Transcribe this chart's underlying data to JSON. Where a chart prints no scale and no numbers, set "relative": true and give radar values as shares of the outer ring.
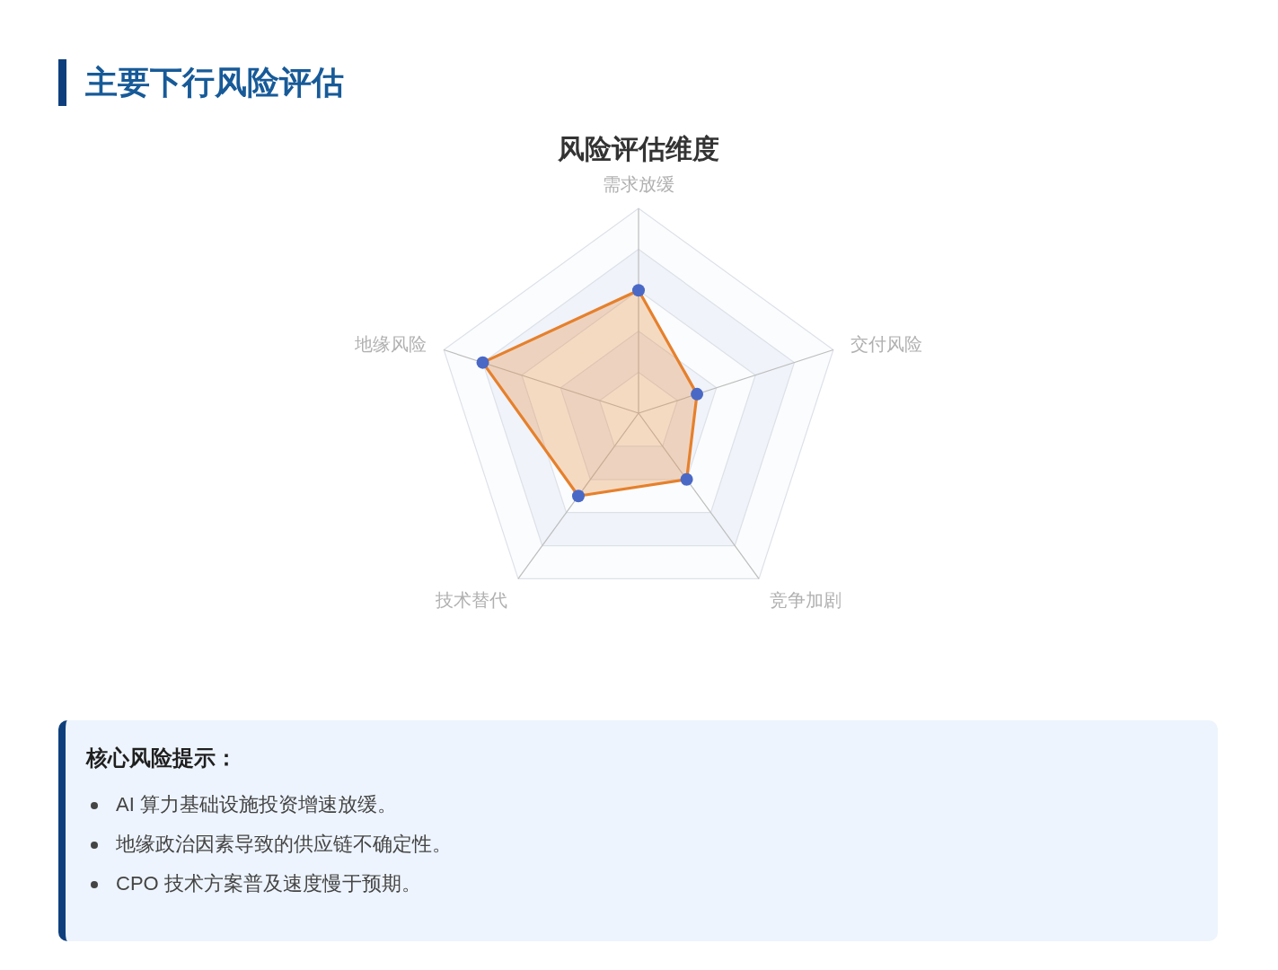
{
  "chart_data": {
    "type": "radar",
    "title": "主要下行风险评估",
    "subtitle": "风险评估维度",
    "categories": [
      "需求放缓",
      "交付风险",
      "竞争加剧",
      "技术替代",
      "地缘风险"
    ],
    "relative": true,
    "series": [
      {
        "color": "#e6802c",
        "colors": [
          "#4a69c6",
          "#4a69c6",
          "#4a69c6",
          "#4a69c6",
          "#4a69c6"
        ],
        "values": [
          0.6,
          0.3,
          0.4,
          0.5,
          0.8
        ]
      }
    ],
    "marker": "circle",
    "grid": true,
    "annotations": [
      "核心风险提示：",
      "AI 算力基础设施投资增速放缓。",
      "地缘政治因素导致的供应链不确定性。",
      "CPO 技术方案普及速度慢于预期。"
    ]
  }
}
